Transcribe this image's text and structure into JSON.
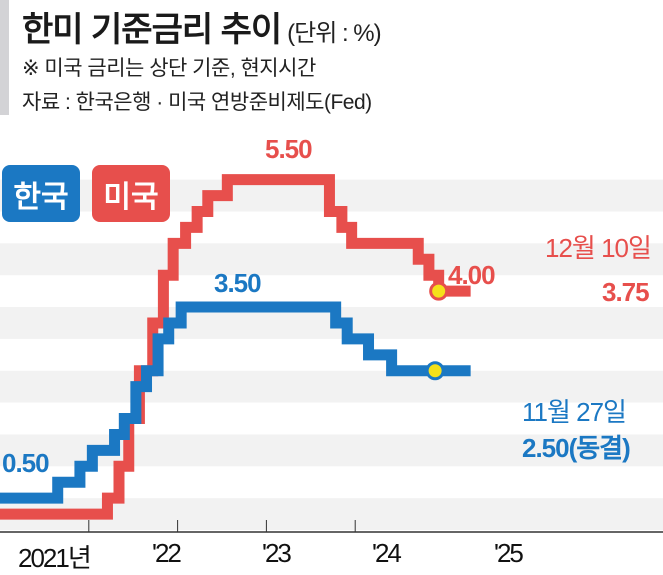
{
  "header": {
    "title": "한미 기준금리 추이",
    "unit": "(단위 : %)",
    "note": "※ 미국 금리는 상단 기준, 현지시간",
    "source": "자료 : 한국은행 · 미국 연방준비제도(Fed)"
  },
  "chart_data": {
    "type": "line",
    "title": "한미 기준금리 추이",
    "ylabel": "%",
    "ylim": [
      0,
      5.75
    ],
    "x_tick_labels": [
      "2021년",
      "'22",
      "'23",
      "'24",
      "'25"
    ],
    "legend": [
      "한국",
      "미국"
    ],
    "colors": {
      "korea": "#1b78c3",
      "us": "#e74f4c",
      "band": "#f2f2f2",
      "marker": "#f5e11a"
    },
    "series": [
      {
        "name": "한국",
        "steps": [
          [
            2021.0,
            0.5
          ],
          [
            2021.65,
            0.75
          ],
          [
            2021.9,
            1.0
          ],
          [
            2022.04,
            1.25
          ],
          [
            2022.29,
            1.5
          ],
          [
            2022.4,
            1.75
          ],
          [
            2022.53,
            2.25
          ],
          [
            2022.65,
            2.5
          ],
          [
            2022.78,
            3.0
          ],
          [
            2022.9,
            3.25
          ],
          [
            2023.04,
            3.5
          ],
          [
            2024.78,
            3.25
          ],
          [
            2024.91,
            3.0
          ],
          [
            2025.15,
            2.75
          ],
          [
            2025.41,
            2.5
          ]
        ],
        "end": 2026.3,
        "marker": [
          2025.9,
          2.5
        ]
      },
      {
        "name": "미국",
        "steps": [
          [
            2021.0,
            0.25
          ],
          [
            2022.21,
            0.5
          ],
          [
            2022.34,
            1.0
          ],
          [
            2022.45,
            1.75
          ],
          [
            2022.57,
            2.5
          ],
          [
            2022.72,
            3.25
          ],
          [
            2022.84,
            4.0
          ],
          [
            2022.95,
            4.5
          ],
          [
            2023.09,
            4.75
          ],
          [
            2023.22,
            5.0
          ],
          [
            2023.34,
            5.25
          ],
          [
            2023.56,
            5.5
          ],
          [
            2024.71,
            5.0
          ],
          [
            2024.85,
            4.75
          ],
          [
            2024.96,
            4.5
          ],
          [
            2025.71,
            4.25
          ],
          [
            2025.83,
            4.0
          ],
          [
            2025.94,
            3.75
          ]
        ],
        "end": 2026.3,
        "marker": [
          2025.94,
          3.75
        ]
      }
    ],
    "annotations": {
      "korea_start": "0.50",
      "korea_peak": "3.50",
      "korea_date": "11월 27일",
      "korea_now": "2.50(동결)",
      "us_peak": "5.50",
      "us_prev": "4.00",
      "us_date": "12월 10일",
      "us_now": "3.75"
    }
  }
}
